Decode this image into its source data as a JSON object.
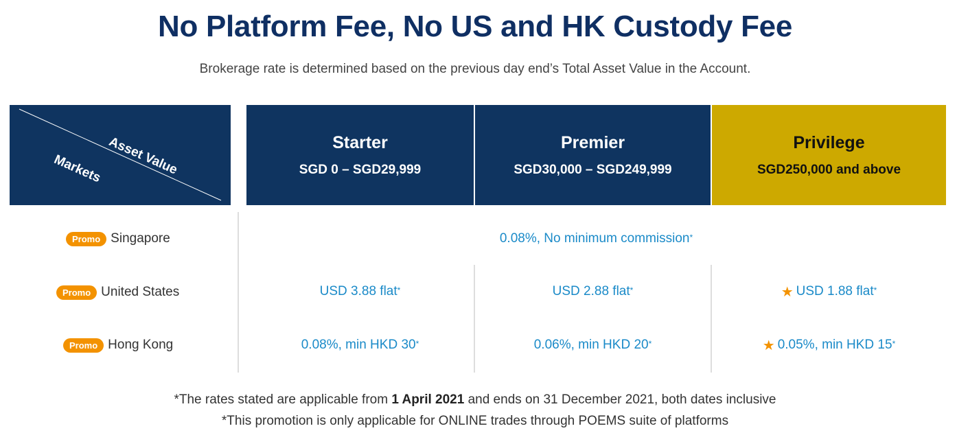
{
  "header": {
    "title": "No Platform Fee, No US and HK Custody Fee",
    "subtitle": "Brokerage rate is determined based on the previous day end’s Total Asset Value in the Account."
  },
  "table": {
    "corner": {
      "top_right_label": "Asset Value",
      "bottom_left_label": "Markets"
    },
    "tiers": [
      {
        "name": "Starter",
        "range": "SGD 0 – SGD29,999",
        "color": "#0f3460"
      },
      {
        "name": "Premier",
        "range": "SGD30,000 – SGD249,999",
        "color": "#0f3460"
      },
      {
        "name": "Privilege",
        "range": "SGD250,000 and above",
        "color": "#cda900"
      }
    ],
    "promo_badge": "Promo",
    "rows": [
      {
        "market": "Singapore",
        "merged_value": "0.08%, No minimum commission",
        "mark": "*"
      },
      {
        "market": "United States",
        "values": [
          "USD 3.88 flat",
          "USD 2.88 flat",
          "USD 1.88 flat"
        ],
        "mark": "*",
        "privilege_icon": "star-icon"
      },
      {
        "market": "Hong Kong",
        "values": [
          "0.08%, min HKD 30",
          "0.06%, min HKD 20",
          "0.05%, min HKD 15"
        ],
        "mark": "*",
        "privilege_icon": "star-icon"
      }
    ]
  },
  "footnotes": {
    "line1_prefix": "*The rates stated are applicable from ",
    "line1_bold": "1 April 2021",
    "line1_suffix": " and ends on 31 December 2021, both dates inclusive",
    "line2": "*This promotion is only applicable for ONLINE trades through POEMS suite of platforms"
  },
  "colors": {
    "navy": "#0f3460",
    "gold": "#cda900",
    "title": "#0f2f63",
    "rate_text": "#1a8ac8",
    "promo_badge": "#f39200",
    "star": "#f39200"
  }
}
